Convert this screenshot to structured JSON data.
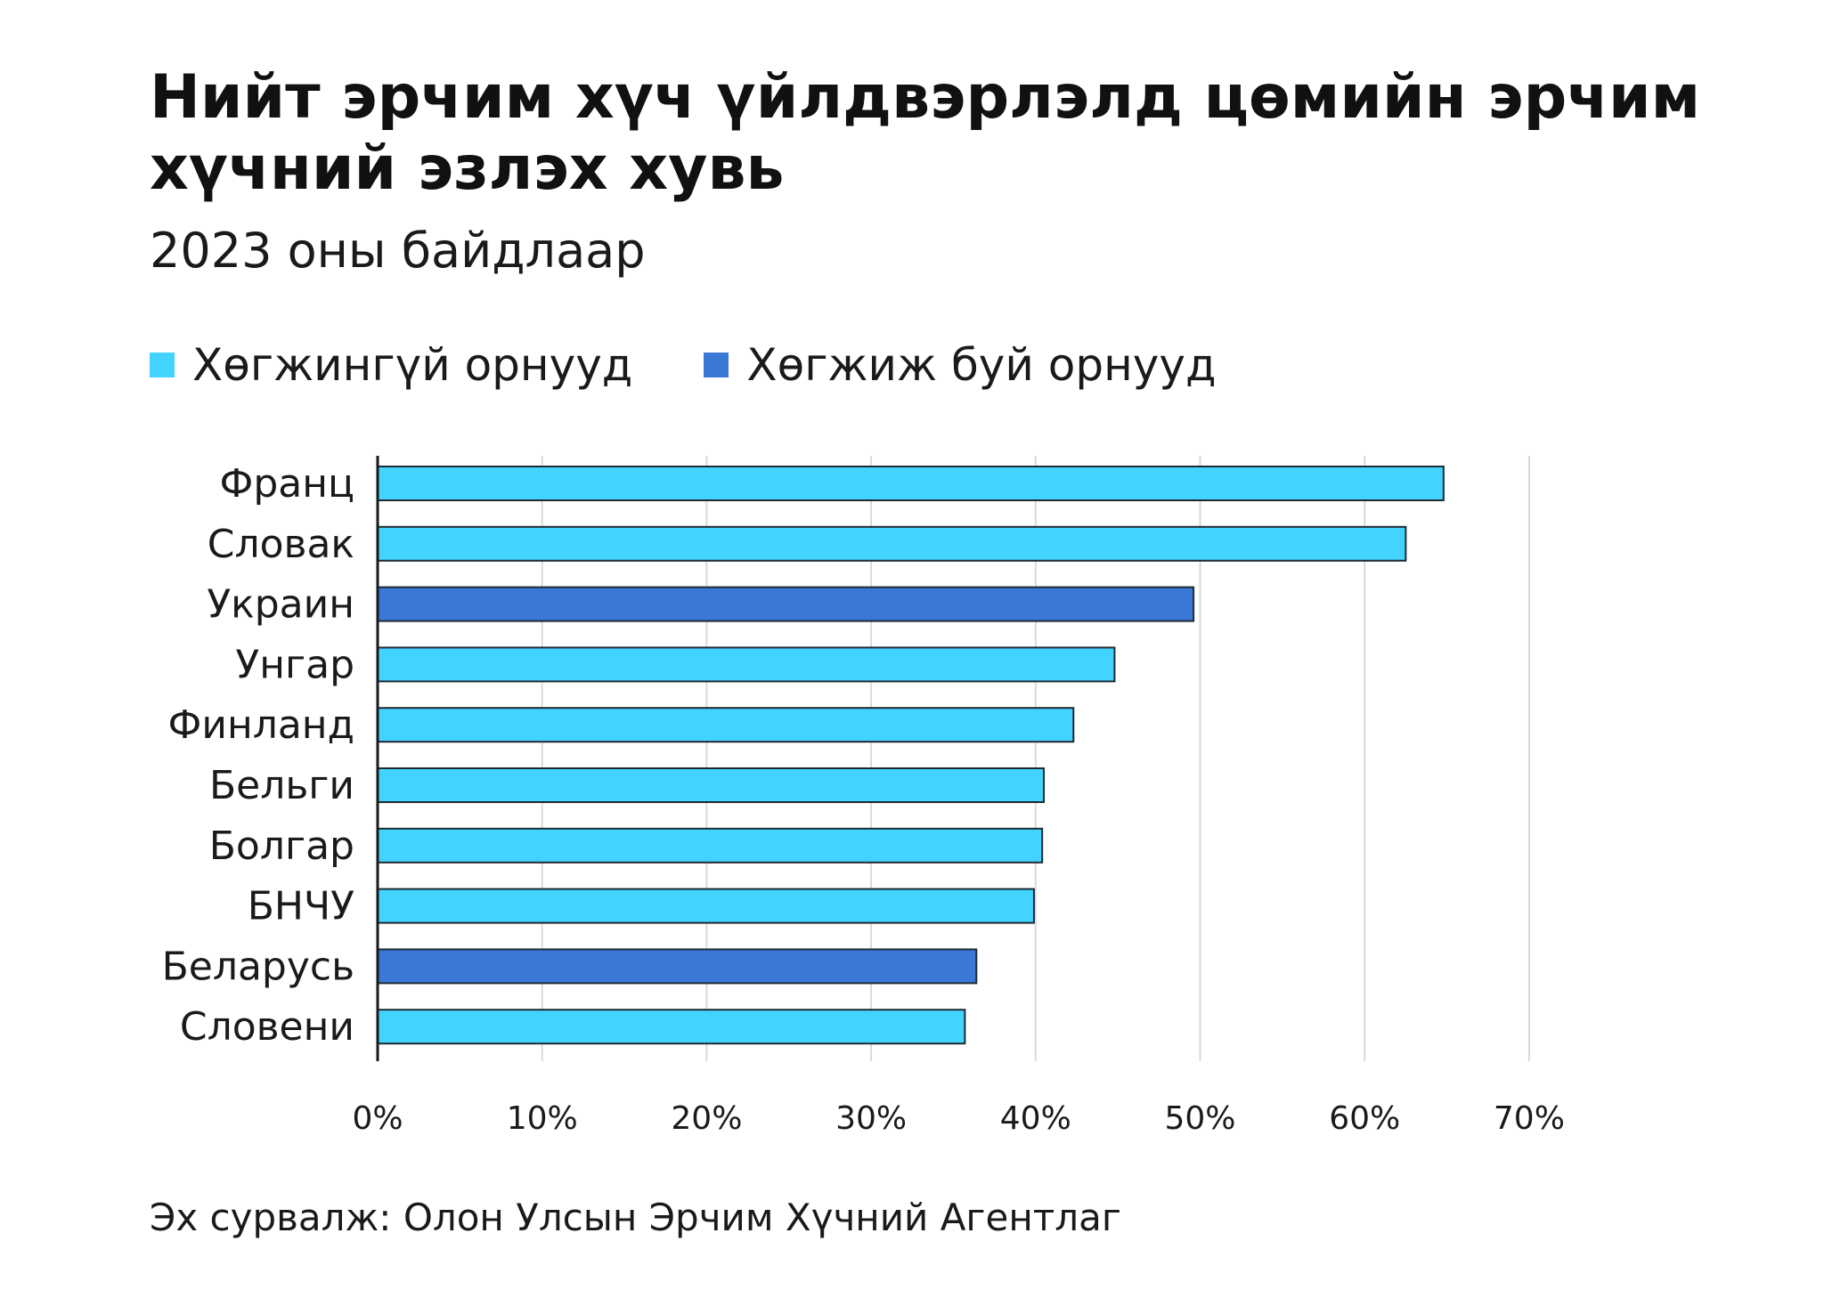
{
  "title": "Нийт эрчим хүч үйлдвэрлэлд цөмийн эрчим хүчний эзлэх хувь",
  "subtitle": "2023 оны байдлаар",
  "source": "Эх сурвалж: Олон Улсын Эрчим Хүчний Агентлаг",
  "legend": [
    {
      "label": "Хөгжингүй орнууд",
      "color": "#43D3FF"
    },
    {
      "label": "Хөгжиж буй орнууд",
      "color": "#3A78D8"
    }
  ],
  "chart_data": {
    "type": "bar",
    "orientation": "horizontal",
    "categories": [
      "Франц",
      "Словак",
      "Украин",
      "Унгар",
      "Финланд",
      "Бельги",
      "Болгар",
      "БНЧУ",
      "Беларусь",
      "Словени"
    ],
    "values": [
      64.8,
      62.5,
      49.6,
      44.8,
      42.3,
      40.5,
      40.4,
      39.9,
      36.4,
      35.7
    ],
    "groups": [
      "Хөгжингүй орнууд",
      "Хөгжингүй орнууд",
      "Хөгжиж буй орнууд",
      "Хөгжингүй орнууд",
      "Хөгжингүй орнууд",
      "Хөгжингүй орнууд",
      "Хөгжингүй орнууд",
      "Хөгжингүй орнууд",
      "Хөгжиж буй орнууд",
      "Хөгжингүй орнууд"
    ],
    "xlim": [
      0,
      70
    ],
    "xticks": [
      "0%",
      "10%",
      "20%",
      "30%",
      "40%",
      "50%",
      "60%",
      "70%"
    ],
    "grid": true
  }
}
